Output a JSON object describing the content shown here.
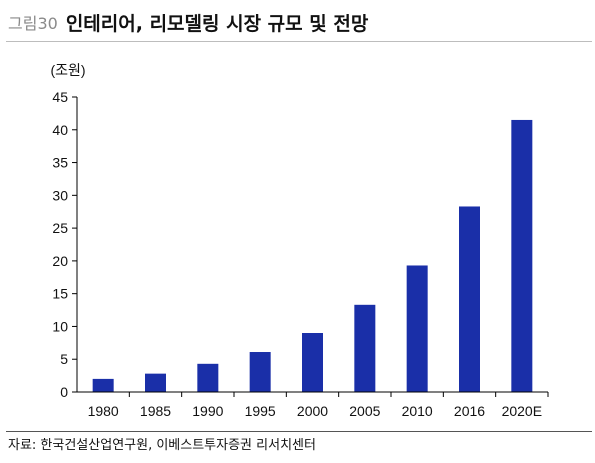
{
  "header": {
    "figure_label": "그림30",
    "title": "인테리어, 리모델링 시장 규모 및 전망"
  },
  "source": "자료: 한국건설산업연구원, 이베스트투자증권 리서치센터",
  "colors": {
    "bar": "#1a2fa8",
    "axis": "#000000"
  },
  "chart_data": {
    "type": "bar",
    "title": "",
    "xlabel": "",
    "ylabel": "(조원)",
    "categories": [
      "1980",
      "1985",
      "1990",
      "1995",
      "2000",
      "2005",
      "2010",
      "2016",
      "2020E"
    ],
    "values": [
      2.0,
      2.8,
      4.3,
      6.1,
      9.0,
      13.3,
      19.3,
      28.3,
      41.5
    ],
    "ylim": [
      0,
      45
    ],
    "yticks": [
      0,
      5,
      10,
      15,
      20,
      25,
      30,
      35,
      40,
      45
    ],
    "grid": false,
    "legend": "none"
  }
}
